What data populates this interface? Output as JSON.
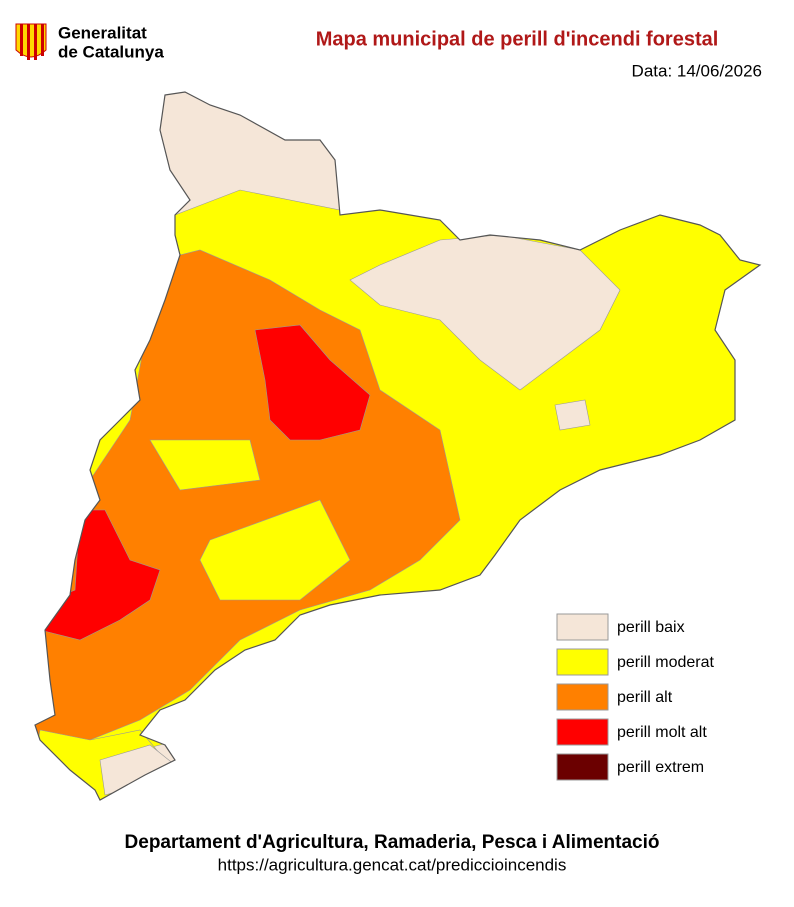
{
  "header": {
    "org_line1": "Generalitat",
    "org_line2": "de Catalunya",
    "title": "Mapa municipal de perill d'incendi forestal",
    "date": "Data: 14/06/2026"
  },
  "legend": [
    {
      "label": "perill baix",
      "color": "#f5e6d8"
    },
    {
      "label": "perill moderat",
      "color": "#ffff00"
    },
    {
      "label": "perill alt",
      "color": "#ff8000"
    },
    {
      "label": "perill molt alt",
      "color": "#ff0000"
    },
    {
      "label": "perill extrem",
      "color": "#6b0000"
    }
  ],
  "footer": {
    "department": "Departament d'Agricultura, Ramaderia, Pesca i Alimentació",
    "url": "https://agricultura.gencat.cat/prediccioincendis"
  }
}
